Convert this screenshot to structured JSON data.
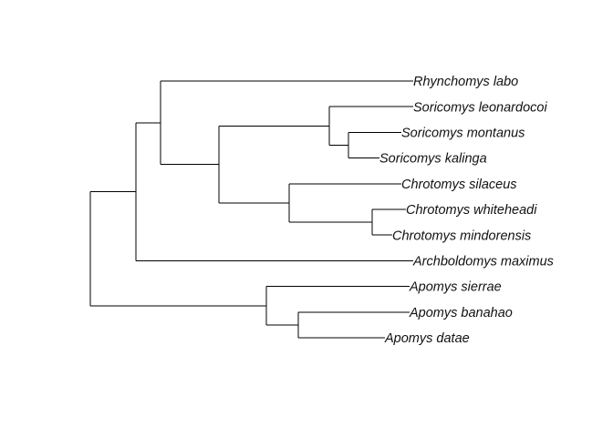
{
  "tree": {
    "name": "root",
    "children": [
      {
        "name": "clade-A",
        "children": [
          {
            "name": "clade-B",
            "children": [
              {
                "name": "tip",
                "label": "Rhynchomys labo"
              },
              {
                "name": "clade-C",
                "children": [
                  {
                    "name": "clade-D",
                    "children": [
                      {
                        "name": "tip",
                        "label": "Soricomys leonardocoi"
                      },
                      {
                        "name": "clade-E",
                        "children": [
                          {
                            "name": "tip",
                            "label": "Soricomys montanus"
                          },
                          {
                            "name": "tip",
                            "label": "Soricomys kalinga"
                          }
                        ]
                      }
                    ]
                  },
                  {
                    "name": "clade-F",
                    "children": [
                      {
                        "name": "tip",
                        "label": "Chrotomys silaceus"
                      },
                      {
                        "name": "clade-G",
                        "children": [
                          {
                            "name": "tip",
                            "label": "Chrotomys whiteheadi"
                          },
                          {
                            "name": "tip",
                            "label": "Chrotomys mindorensis"
                          }
                        ]
                      }
                    ]
                  }
                ]
              }
            ]
          },
          {
            "name": "tip",
            "label": "Archboldomys maximus"
          }
        ]
      },
      {
        "name": "clade-H",
        "children": [
          {
            "name": "tip",
            "label": "Apomys sierrae"
          },
          {
            "name": "clade-I",
            "children": [
              {
                "name": "tip",
                "label": "Apomys banahao"
              },
              {
                "name": "tip",
                "label": "Apomys datae"
              }
            ]
          }
        ]
      }
    ]
  },
  "style": {
    "line_color": "#000000",
    "label_color": "#111111"
  }
}
